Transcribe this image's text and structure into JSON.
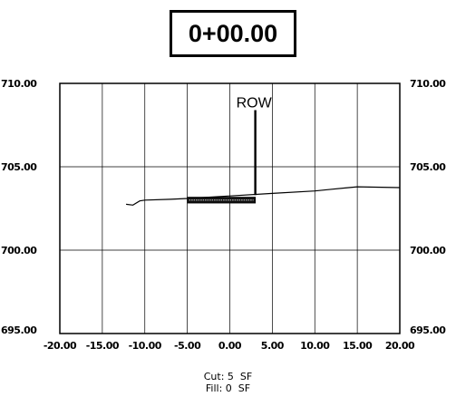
{
  "station_label": "0+00.00",
  "row_label": "ROW",
  "volumes": {
    "cut": "Cut: 5  SF",
    "fill": "Fill: 0  SF"
  },
  "chart_data": {
    "type": "line",
    "xlim": [
      -20,
      20
    ],
    "ylim": [
      695,
      710
    ],
    "x_ticks": [
      "-20.00",
      "-15.00",
      "-10.00",
      "-5.00",
      "0.00",
      "5.00",
      "10.00",
      "15.00",
      "20.00"
    ],
    "y_ticks": [
      "710.00",
      "705.00",
      "700.00",
      "695.00"
    ],
    "grid": true,
    "ground_profile": {
      "x": [
        -12.2,
        -11.4,
        -10.6,
        -10.0,
        -7.0,
        -5.0,
        0.0,
        5.0,
        10.0,
        12.0,
        14.0,
        15.0,
        20.0
      ],
      "y": [
        702.75,
        702.7,
        702.95,
        703.0,
        703.05,
        703.1,
        703.25,
        703.4,
        703.55,
        703.65,
        703.75,
        703.8,
        703.75
      ]
    },
    "row_marker": {
      "x": 3.0,
      "y_bottom": 703.3,
      "y_top": 708.4
    },
    "road_section": {
      "x_start": -5.0,
      "x_end": 3.0,
      "y": 703.0,
      "thickness": 0.35
    }
  }
}
